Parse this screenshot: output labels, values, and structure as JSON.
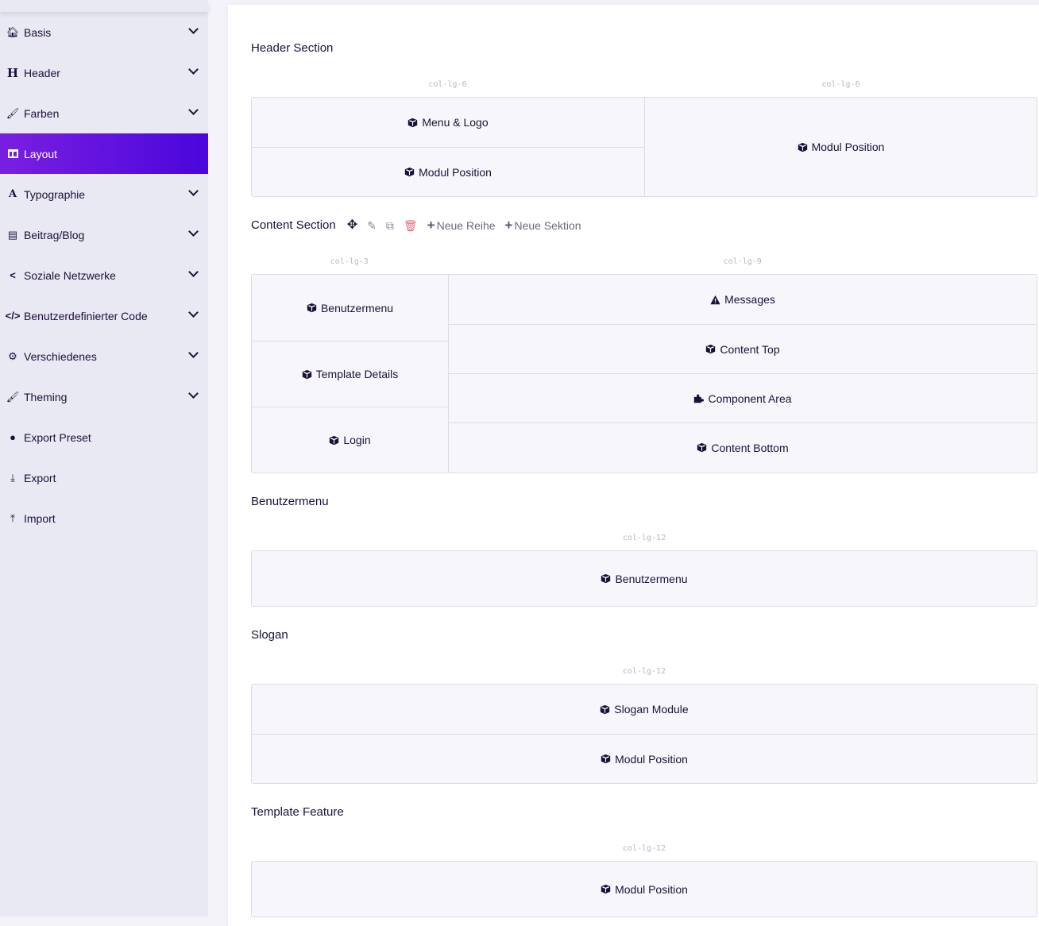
{
  "sidebar": {
    "items": [
      {
        "label": "Basis",
        "icon": "home-icon",
        "expandable": true
      },
      {
        "label": "Header",
        "icon": "heading-icon",
        "expandable": true
      },
      {
        "label": "Farben",
        "icon": "paint-brush-icon",
        "expandable": true
      },
      {
        "label": "Layout",
        "icon": "columns-icon",
        "expandable": false,
        "active": true
      },
      {
        "label": "Typographie",
        "icon": "font-icon",
        "expandable": true
      },
      {
        "label": "Beitrag/Blog",
        "icon": "newspaper-icon",
        "expandable": true
      },
      {
        "label": "Soziale Netzwerke",
        "icon": "share-icon",
        "expandable": true
      },
      {
        "label": "Benutzerdefinierter Code",
        "icon": "code-icon",
        "expandable": true
      },
      {
        "label": "Verschiedenes",
        "icon": "cogs-icon",
        "expandable": true
      },
      {
        "label": "Theming",
        "icon": "paint-brush-icon",
        "expandable": true
      },
      {
        "label": "Export Preset",
        "icon": "palette-icon",
        "expandable": false
      },
      {
        "label": "Export",
        "icon": "download-icon",
        "expandable": false
      },
      {
        "label": "Import",
        "icon": "upload-icon",
        "expandable": false
      }
    ]
  },
  "colors": {
    "accent_start": "#7a1fe0",
    "accent_end": "#4a06dc",
    "delete": "#e0707a",
    "text": "#1c0f3a"
  },
  "toolbar": {
    "new_row": "Neue Reihe",
    "new_section": "Neue Sektion"
  },
  "sections": [
    {
      "title": "Header Section",
      "columns": [
        {
          "label": "col-lg-6",
          "cells": [
            {
              "text": "Menu & Logo",
              "icon": "cube-icon"
            },
            {
              "text": "Modul Position",
              "icon": "cube-icon"
            }
          ]
        },
        {
          "label": "col-lg-6",
          "cells": [
            {
              "text": "Modul Position",
              "icon": "cube-icon"
            }
          ]
        }
      ]
    },
    {
      "title": "Content Section",
      "columns": [
        {
          "label": "col-lg-3",
          "cells": [
            {
              "text": "Benutzermenu",
              "icon": "cube-icon"
            },
            {
              "text": "Template Details",
              "icon": "cube-icon"
            },
            {
              "text": "Login",
              "icon": "cube-icon"
            }
          ]
        },
        {
          "label": "col-lg-9",
          "cells": [
            {
              "text": "Messages",
              "icon": "warning-icon"
            },
            {
              "text": "Content Top",
              "icon": "cube-icon"
            },
            {
              "text": "Component Area",
              "icon": "puzzle-icon"
            },
            {
              "text": "Content Bottom",
              "icon": "cube-icon"
            }
          ]
        }
      ]
    },
    {
      "title": "Benutzermenu",
      "columns": [
        {
          "label": "col-lg-12",
          "cells": [
            {
              "text": "Benutzermenu",
              "icon": "cube-icon"
            }
          ]
        }
      ]
    },
    {
      "title": "Slogan",
      "columns": [
        {
          "label": "col-lg-12",
          "cells": [
            {
              "text": "Slogan Module",
              "icon": "cube-icon"
            },
            {
              "text": "Modul Position",
              "icon": "cube-icon"
            }
          ]
        }
      ]
    },
    {
      "title": "Template Feature",
      "columns": [
        {
          "label": "col-lg-12",
          "cells": [
            {
              "text": "Modul Position",
              "icon": "cube-icon"
            }
          ]
        }
      ]
    }
  ]
}
